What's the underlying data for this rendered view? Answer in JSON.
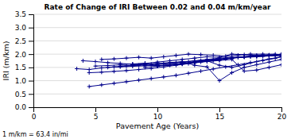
{
  "chart_data": {
    "type": "line",
    "title": "Rate of Change of IRI Between 0.02 and 0.04 m/km/year",
    "x_label": "Pavement Age (Years)",
    "y_label": "IRI (m/km)",
    "annotations": [
      "1 m/km = 63.4 in/mi"
    ],
    "xlim": [
      0,
      20
    ],
    "ylim": [
      0.0,
      3.5
    ],
    "xticks": [
      0,
      5,
      10,
      15,
      20
    ],
    "yticks": [
      {
        "value": 0.0,
        "label": "0.0"
      },
      0.5,
      {
        "value": 1.0,
        "label": "1.0"
      },
      1.5,
      {
        "value": 2.0,
        "label": "2.0"
      },
      2.5,
      {
        "value": 3.0,
        "label": "3.0"
      },
      3.5
    ],
    "grid": true,
    "color": "#00008B",
    "marker": "plus",
    "series": [
      {
        "x": [
          3.5,
          4.5,
          5.5,
          6.5,
          7.5,
          8.5,
          9.5,
          10.5,
          11.5,
          12.5,
          13.5,
          14.5,
          15.5,
          16.5,
          17.5,
          18.5,
          19.5
        ],
        "values": [
          1.45,
          1.42,
          1.48,
          1.52,
          1.55,
          1.58,
          1.62,
          1.65,
          1.68,
          1.72,
          1.76,
          1.8,
          1.84,
          1.88,
          1.9,
          1.92,
          1.95
        ]
      },
      {
        "x": [
          4.0,
          5.0,
          6.0,
          7.0,
          8.0,
          9.0,
          10.0,
          11.0,
          12.0,
          13.0,
          14.0,
          15.0,
          16.0,
          17.0,
          18.0,
          19.0,
          20.0
        ],
        "values": [
          1.75,
          1.72,
          1.68,
          1.65,
          1.62,
          1.58,
          1.56,
          1.58,
          1.62,
          1.68,
          1.74,
          1.8,
          1.86,
          1.9,
          1.94,
          1.97,
          2.0
        ]
      },
      {
        "x": [
          4.5,
          5.5,
          6.5,
          7.5,
          8.5,
          9.5,
          10.5,
          11.5,
          12.5,
          13.5,
          14.5,
          15.5,
          16.5,
          17.5,
          18.5
        ],
        "values": [
          1.3,
          1.32,
          1.35,
          1.38,
          1.42,
          1.46,
          1.52,
          1.58,
          1.64,
          1.7,
          1.76,
          1.82,
          1.88,
          1.92,
          1.95
        ]
      },
      {
        "x": [
          4.5,
          5.5,
          6.5,
          7.5,
          8.5,
          9.5,
          10.5,
          11.5,
          12.5,
          13.5,
          14.5,
          15.5,
          16.5,
          17.5,
          18.5,
          19.5,
          20.0
        ],
        "values": [
          0.78,
          0.84,
          0.9,
          0.96,
          1.02,
          1.08,
          1.14,
          1.2,
          1.28,
          1.36,
          1.44,
          1.52,
          1.6,
          1.68,
          1.76,
          1.84,
          1.9
        ]
      },
      {
        "x": [
          5.0,
          6.0,
          7.0,
          8.0,
          9.0,
          10.0,
          11.0,
          12.0,
          13.0,
          14.0,
          15.0,
          16.0,
          17.0,
          18.0,
          19.0,
          20.0
        ],
        "values": [
          1.55,
          1.57,
          1.6,
          1.63,
          1.66,
          1.55,
          1.6,
          1.65,
          1.7,
          1.75,
          1.58,
          1.5,
          1.6,
          1.72,
          1.82,
          1.9
        ]
      },
      {
        "x": [
          5.5,
          6.5,
          7.5,
          8.5,
          9.5,
          10.5,
          11.5,
          12.5,
          13.5,
          14.5,
          15.5,
          16.5,
          17.5,
          18.5,
          19.5
        ],
        "values": [
          1.8,
          1.82,
          1.85,
          1.88,
          1.85,
          1.9,
          1.95,
          2.0,
          1.98,
          1.96,
          1.92,
          1.96,
          2.0,
          2.0,
          2.0
        ]
      },
      {
        "x": [
          6.0,
          7.0,
          8.0,
          9.0,
          10.0,
          11.0,
          12.0,
          13.0,
          14.0,
          15.0,
          16.0,
          17.0,
          18.0,
          19.0,
          20.0
        ],
        "values": [
          1.5,
          1.52,
          1.54,
          1.56,
          1.6,
          1.65,
          1.7,
          1.75,
          1.8,
          1.85,
          1.88,
          1.9,
          1.92,
          1.95,
          1.98
        ]
      },
      {
        "x": [
          7.0,
          8.0,
          9.0,
          10.0,
          11.0,
          12.0,
          13.0,
          14.0,
          15.0,
          16.0,
          17.0,
          18.0,
          19.0,
          20.0
        ],
        "values": [
          1.55,
          1.58,
          1.62,
          1.65,
          1.68,
          1.72,
          1.58,
          1.52,
          1.0,
          1.3,
          1.5,
          1.6,
          1.7,
          1.8
        ]
      },
      {
        "x": [
          8.0,
          9.0,
          10.0,
          11.0,
          12.0,
          13.0,
          14.0,
          15.0,
          16.0,
          17.0,
          18.0,
          19.0,
          20.0
        ],
        "values": [
          1.6,
          1.65,
          1.7,
          1.75,
          1.8,
          1.85,
          1.9,
          1.88,
          2.0,
          1.98,
          1.95,
          1.95,
          1.95
        ]
      },
      {
        "x": [
          9.0,
          10.0,
          11.0,
          12.0,
          13.0,
          14.0,
          15.0,
          16.0,
          17.0,
          18.0,
          19.0,
          20.0
        ],
        "values": [
          1.5,
          1.55,
          1.6,
          1.65,
          1.7,
          1.75,
          1.8,
          1.85,
          1.9,
          1.93,
          1.96,
          1.98
        ]
      },
      {
        "x": [
          10.0,
          11.0,
          12.0,
          13.0,
          14.0,
          15.0,
          16.0,
          17.0,
          18.0,
          19.0,
          20.0
        ],
        "values": [
          1.56,
          1.6,
          1.64,
          1.68,
          1.72,
          1.76,
          1.8,
          1.36,
          1.4,
          1.5,
          1.6
        ]
      },
      {
        "x": [
          12.0,
          13.0,
          14.0,
          15.0,
          16.0,
          17.0,
          18.0,
          19.0,
          20.0
        ],
        "values": [
          1.65,
          1.7,
          1.75,
          1.8,
          1.85,
          1.88,
          1.9,
          1.93,
          1.95
        ]
      }
    ]
  }
}
